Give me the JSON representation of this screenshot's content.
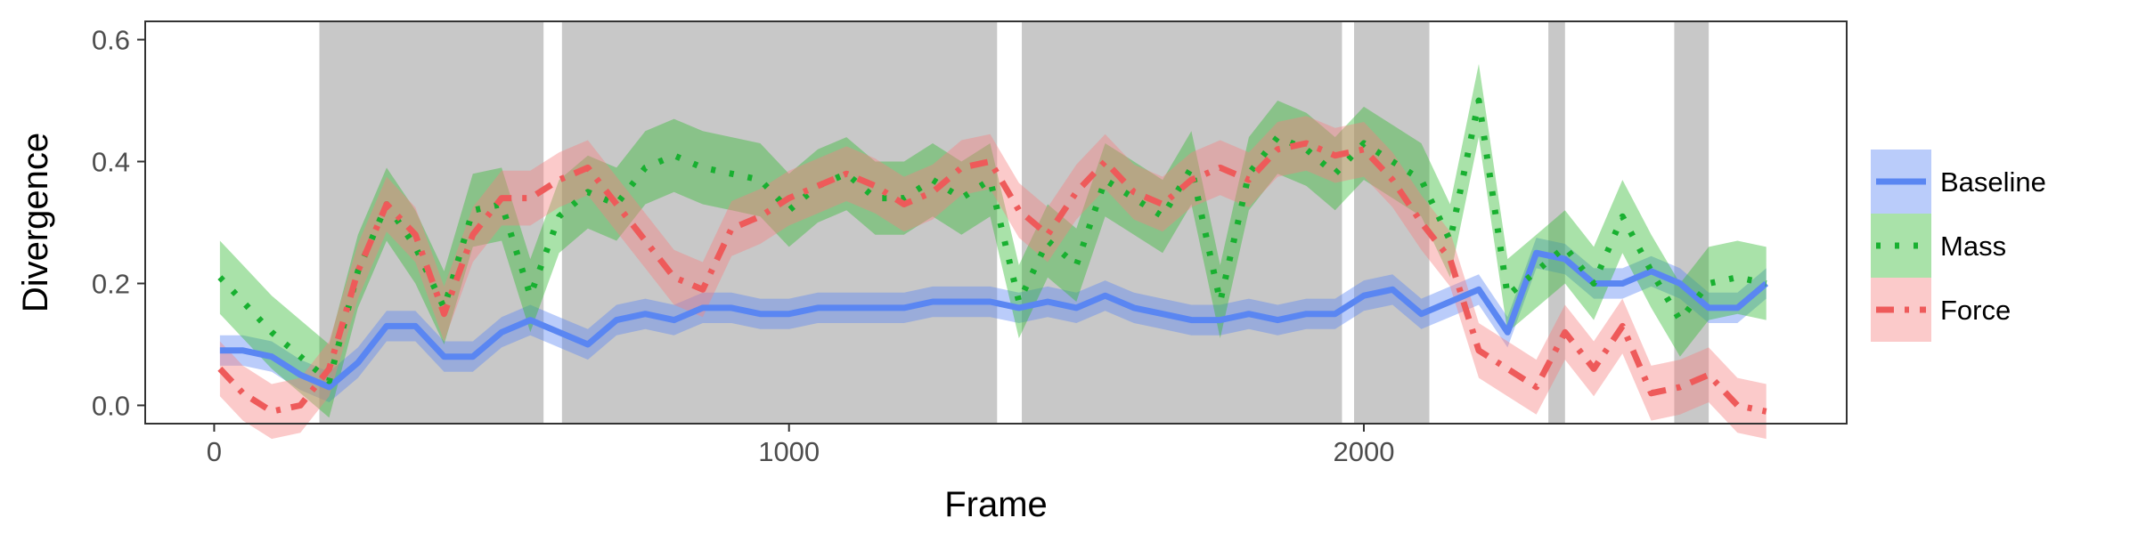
{
  "chart_data": {
    "type": "line",
    "xlabel": "Frame",
    "ylabel": "Divergence",
    "xlim": [
      -120,
      2840
    ],
    "ylim": [
      -0.03,
      0.63
    ],
    "xticks": [
      {
        "value": 0,
        "label": "0"
      },
      {
        "value": 1000,
        "label": "1000"
      },
      {
        "value": 2000,
        "label": "2000"
      }
    ],
    "yticks": [
      {
        "value": 0.0,
        "label": "0.0"
      },
      {
        "value": 0.2,
        "label": "0.2"
      },
      {
        "value": 0.4,
        "label": "0.4"
      },
      {
        "value": 0.6,
        "label": "0.6"
      }
    ],
    "grid": false,
    "legend_position": "right",
    "shaded_intervals": [
      [
        183,
        573
      ],
      [
        605,
        1362
      ],
      [
        1405,
        1962
      ],
      [
        1983,
        2114
      ],
      [
        2321,
        2350
      ],
      [
        2540,
        2600
      ]
    ],
    "shade_color": "#c8c8c8",
    "series": [
      {
        "name": "Baseline",
        "color": "#5a86f2",
        "band_color": "#5a86f2",
        "dash": "solid",
        "x": [
          10,
          50,
          100,
          150,
          200,
          250,
          300,
          350,
          400,
          450,
          500,
          550,
          600,
          650,
          700,
          750,
          800,
          850,
          900,
          950,
          1000,
          1050,
          1100,
          1150,
          1200,
          1250,
          1300,
          1350,
          1400,
          1450,
          1500,
          1550,
          1600,
          1650,
          1700,
          1750,
          1800,
          1850,
          1900,
          1950,
          2000,
          2050,
          2100,
          2150,
          2200,
          2250,
          2300,
          2350,
          2400,
          2450,
          2500,
          2550,
          2600,
          2650,
          2700
        ],
        "y": [
          0.09,
          0.09,
          0.08,
          0.05,
          0.03,
          0.07,
          0.13,
          0.13,
          0.08,
          0.08,
          0.12,
          0.14,
          0.12,
          0.1,
          0.14,
          0.15,
          0.14,
          0.16,
          0.16,
          0.15,
          0.15,
          0.16,
          0.16,
          0.16,
          0.16,
          0.17,
          0.17,
          0.17,
          0.16,
          0.17,
          0.16,
          0.18,
          0.16,
          0.15,
          0.14,
          0.14,
          0.15,
          0.14,
          0.15,
          0.15,
          0.18,
          0.19,
          0.15,
          0.17,
          0.19,
          0.12,
          0.25,
          0.24,
          0.2,
          0.2,
          0.22,
          0.2,
          0.16,
          0.16,
          0.2
        ],
        "band": 0.025
      },
      {
        "name": "Mass",
        "color": "#18b030",
        "band_color": "#33bb33",
        "dash": "dotted",
        "x": [
          10,
          50,
          100,
          150,
          200,
          250,
          300,
          350,
          400,
          450,
          500,
          550,
          600,
          650,
          700,
          750,
          800,
          850,
          900,
          950,
          1000,
          1050,
          1100,
          1150,
          1200,
          1250,
          1300,
          1350,
          1400,
          1450,
          1500,
          1550,
          1600,
          1650,
          1700,
          1750,
          1800,
          1850,
          1900,
          1950,
          2000,
          2050,
          2100,
          2150,
          2200,
          2250,
          2300,
          2350,
          2400,
          2450,
          2500,
          2550,
          2600,
          2650,
          2700
        ],
        "y": [
          0.21,
          0.17,
          0.12,
          0.08,
          0.04,
          0.22,
          0.33,
          0.26,
          0.16,
          0.32,
          0.33,
          0.18,
          0.31,
          0.35,
          0.33,
          0.39,
          0.41,
          0.39,
          0.38,
          0.37,
          0.32,
          0.36,
          0.38,
          0.34,
          0.34,
          0.37,
          0.34,
          0.37,
          0.17,
          0.27,
          0.23,
          0.37,
          0.34,
          0.31,
          0.39,
          0.17,
          0.38,
          0.44,
          0.42,
          0.38,
          0.43,
          0.4,
          0.37,
          0.27,
          0.5,
          0.18,
          0.22,
          0.26,
          0.2,
          0.31,
          0.22,
          0.14,
          0.2,
          0.21,
          0.2
        ],
        "band": 0.06
      },
      {
        "name": "Force",
        "color": "#ee5a5a",
        "band_color": "#f58080",
        "dash": "dashdot",
        "x": [
          10,
          50,
          100,
          150,
          200,
          250,
          300,
          350,
          400,
          450,
          500,
          550,
          600,
          650,
          700,
          750,
          800,
          850,
          900,
          950,
          1000,
          1050,
          1100,
          1150,
          1200,
          1250,
          1300,
          1350,
          1400,
          1450,
          1500,
          1550,
          1600,
          1650,
          1700,
          1750,
          1800,
          1850,
          1900,
          1950,
          2000,
          2050,
          2100,
          2150,
          2200,
          2250,
          2300,
          2350,
          2400,
          2450,
          2500,
          2550,
          2600,
          2650,
          2700
        ],
        "y": [
          0.06,
          0.02,
          -0.01,
          0.0,
          0.06,
          0.22,
          0.33,
          0.28,
          0.15,
          0.28,
          0.34,
          0.34,
          0.37,
          0.39,
          0.33,
          0.27,
          0.21,
          0.19,
          0.29,
          0.31,
          0.34,
          0.36,
          0.38,
          0.36,
          0.33,
          0.35,
          0.39,
          0.4,
          0.32,
          0.28,
          0.35,
          0.4,
          0.35,
          0.33,
          0.37,
          0.39,
          0.37,
          0.42,
          0.43,
          0.41,
          0.42,
          0.37,
          0.3,
          0.24,
          0.09,
          0.06,
          0.03,
          0.12,
          0.06,
          0.13,
          0.02,
          0.03,
          0.05,
          0.0,
          -0.01
        ],
        "band": 0.045
      }
    ]
  }
}
